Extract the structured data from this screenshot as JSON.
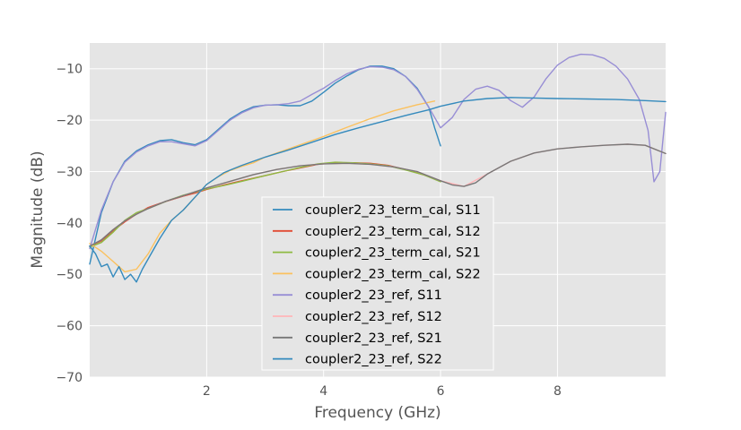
{
  "chart_data": {
    "type": "line",
    "title": "",
    "xlabel": "Frequency (GHz)",
    "ylabel": "Magnitude (dB)",
    "xlim": [
      0,
      9.85
    ],
    "ylim": [
      -70,
      -5
    ],
    "xticks": [
      2,
      4,
      6,
      8
    ],
    "yticks": [
      -70,
      -60,
      -50,
      -40,
      -30,
      -20,
      -10
    ],
    "tick_labels_x": [
      "2",
      "4",
      "6",
      "8"
    ],
    "tick_labels_y": [
      "−70",
      "−60",
      "−50",
      "−40",
      "−30",
      "−20",
      "−10"
    ],
    "grid": true,
    "legend_position": "lower-center",
    "background": "#e5e5e5",
    "series": [
      {
        "name": "coupler2_23_term_cal, S11",
        "color": "#348abd",
        "x": [
          0.0,
          0.2,
          0.4,
          0.6,
          0.8,
          1.0,
          1.2,
          1.4,
          1.6,
          1.8,
          2.0,
          2.2,
          2.4,
          2.6,
          2.8,
          3.0,
          3.2,
          3.4,
          3.6,
          3.8,
          4.0,
          4.2,
          4.4,
          4.6,
          4.8,
          5.0,
          5.2,
          5.4,
          5.6,
          5.8,
          5.9,
          6.0
        ],
        "y": [
          -48,
          -38,
          -32,
          -28,
          -26,
          -24.8,
          -24,
          -23.8,
          -24.4,
          -24.8,
          -23.8,
          -21.8,
          -19.8,
          -18.4,
          -17.4,
          -17.1,
          -17.0,
          -17.2,
          -17.2,
          -16.3,
          -14.6,
          -12.8,
          -11.4,
          -10.2,
          -9.5,
          -9.5,
          -10.0,
          -11.5,
          -13.8,
          -17.5,
          -21.5,
          -25.0
        ]
      },
      {
        "name": "coupler2_23_term_cal, S12",
        "color": "#e24a33",
        "x": [
          0.0,
          0.2,
          0.4,
          0.6,
          0.8,
          1.0,
          1.2,
          1.4,
          1.6,
          1.8,
          2.0,
          2.3,
          2.6,
          3.0,
          3.3,
          3.6,
          3.9,
          4.2,
          4.5,
          4.8,
          5.1,
          5.4,
          5.7,
          6.0
        ],
        "y": [
          -44.5,
          -43.5,
          -41.5,
          -39.8,
          -38.3,
          -37,
          -36.2,
          -35.5,
          -34.8,
          -34.2,
          -33.5,
          -32.6,
          -31.8,
          -30.8,
          -30.0,
          -29.3,
          -28.6,
          -28.3,
          -28.3,
          -28.4,
          -28.8,
          -29.6,
          -30.6,
          -31.8
        ]
      },
      {
        "name": "coupler2_23_term_cal, S21",
        "color": "#8eba42",
        "x": [
          0.0,
          0.2,
          0.4,
          0.6,
          0.8,
          1.0,
          1.2,
          1.4,
          1.6,
          1.8,
          2.0,
          2.3,
          2.6,
          3.0,
          3.3,
          3.6,
          3.9,
          4.2,
          4.5,
          4.8,
          5.1,
          5.4,
          5.7,
          6.0
        ],
        "y": [
          -44.7,
          -43.8,
          -41.8,
          -39.5,
          -38.0,
          -37.2,
          -36.3,
          -35.4,
          -34.6,
          -34.0,
          -33.4,
          -32.7,
          -31.9,
          -30.8,
          -30.0,
          -29.2,
          -28.5,
          -28.2,
          -28.3,
          -28.5,
          -28.9,
          -29.7,
          -30.6,
          -32.0
        ]
      },
      {
        "name": "coupler2_23_term_cal, S22",
        "color": "#fbc15e",
        "x": [
          0.0,
          0.2,
          0.4,
          0.6,
          0.8,
          1.0,
          1.2,
          1.4,
          1.6,
          1.8,
          2.0,
          2.2,
          2.4,
          2.6,
          2.8,
          3.0,
          3.3,
          3.6,
          4.0,
          4.4,
          4.8,
          5.2,
          5.6,
          5.9
        ],
        "y": [
          -44,
          -45.5,
          -47.5,
          -49.5,
          -49.0,
          -46,
          -42,
          -39.5,
          -37.5,
          -35,
          -32.5,
          -31,
          -29.8,
          -29,
          -28.3,
          -27.2,
          -26,
          -24.8,
          -23.2,
          -21.4,
          -19.7,
          -18.2,
          -17,
          -16.3
        ]
      },
      {
        "name": "coupler2_23_ref, S11",
        "color": "#988ed5",
        "x": [
          0.0,
          0.2,
          0.4,
          0.6,
          0.8,
          1.0,
          1.2,
          1.4,
          1.6,
          1.8,
          2.0,
          2.2,
          2.4,
          2.6,
          2.8,
          3.0,
          3.2,
          3.4,
          3.6,
          3.8,
          4.0,
          4.2,
          4.4,
          4.6,
          4.8,
          5.0,
          5.2,
          5.4,
          5.6,
          5.8,
          6.0,
          6.2,
          6.4,
          6.6,
          6.8,
          7.0,
          7.2,
          7.4,
          7.6,
          7.8,
          8.0,
          8.2,
          8.4,
          8.6,
          8.8,
          9.0,
          9.2,
          9.4,
          9.55,
          9.65,
          9.75,
          9.85
        ],
        "y": [
          -45,
          -37.5,
          -32,
          -28.2,
          -26.2,
          -25,
          -24.2,
          -24.2,
          -24.6,
          -25,
          -24,
          -22,
          -20,
          -18.6,
          -17.6,
          -17.1,
          -17.0,
          -16.8,
          -16.3,
          -15.0,
          -13.8,
          -12.3,
          -11.0,
          -10.1,
          -9.6,
          -9.7,
          -10.2,
          -11.5,
          -14.0,
          -17.5,
          -21.5,
          -19.5,
          -16.0,
          -14.0,
          -13.4,
          -14.2,
          -16.2,
          -17.5,
          -15.5,
          -12.0,
          -9.3,
          -7.8,
          -7.2,
          -7.3,
          -8.0,
          -9.5,
          -12.0,
          -16.0,
          -22.0,
          -32.0,
          -30.0,
          -18.5
        ]
      },
      {
        "name": "coupler2_23_ref, S12",
        "color": "#ffb5b8",
        "x": [
          0.0,
          0.2,
          0.4,
          0.6,
          0.8,
          1.0,
          1.3,
          1.6,
          2.0,
          2.4,
          2.8,
          3.2,
          3.6,
          4.0,
          4.4,
          4.8,
          5.2,
          5.6,
          6.0,
          6.4,
          6.8,
          7.2,
          7.6,
          8.0,
          8.4,
          8.8,
          9.2,
          9.5,
          9.85
        ],
        "y": [
          -44.5,
          -43.3,
          -41.3,
          -39.6,
          -38.3,
          -37.2,
          -35.8,
          -34.7,
          -33.2,
          -31.9,
          -30.6,
          -29.6,
          -28.9,
          -28.5,
          -28.4,
          -28.6,
          -29.1,
          -30.0,
          -31.8,
          -32.9,
          -30.5,
          -28.0,
          -26.4,
          -25.6,
          -25.2,
          -24.9,
          -24.7,
          -24.9,
          -26.5
        ]
      },
      {
        "name": "coupler2_23_ref, S21",
        "color": "#777777",
        "x": [
          0.0,
          0.2,
          0.4,
          0.6,
          0.8,
          1.0,
          1.3,
          1.6,
          2.0,
          2.4,
          2.8,
          3.2,
          3.6,
          4.0,
          4.4,
          4.8,
          5.2,
          5.6,
          6.0,
          6.2,
          6.4,
          6.6,
          6.8,
          7.2,
          7.6,
          8.0,
          8.4,
          8.8,
          9.2,
          9.5,
          9.85
        ],
        "y": [
          -44.5,
          -43.3,
          -41.3,
          -39.6,
          -38.3,
          -37.2,
          -35.8,
          -34.7,
          -33.2,
          -31.9,
          -30.6,
          -29.6,
          -28.9,
          -28.5,
          -28.4,
          -28.6,
          -29.1,
          -30.0,
          -31.8,
          -32.6,
          -32.9,
          -32.2,
          -30.5,
          -28.0,
          -26.4,
          -25.6,
          -25.2,
          -24.9,
          -24.7,
          -24.9,
          -26.5
        ]
      },
      {
        "name": "coupler2_23_ref, S22",
        "color": "#348abd",
        "x": [
          0.0,
          0.1,
          0.2,
          0.3,
          0.4,
          0.5,
          0.6,
          0.7,
          0.8,
          0.9,
          1.0,
          1.2,
          1.4,
          1.6,
          1.8,
          2.0,
          2.3,
          2.6,
          3.0,
          3.4,
          3.8,
          4.2,
          4.6,
          5.0,
          5.4,
          5.8,
          6.0,
          6.4,
          6.8,
          7.2,
          7.6,
          8.0,
          8.5,
          9.0,
          9.5,
          9.85
        ],
        "y": [
          -44.5,
          -46,
          -48.5,
          -48,
          -50.5,
          -48.5,
          -51,
          -50,
          -51.5,
          -49,
          -47,
          -43,
          -39.5,
          -37.5,
          -35,
          -32.5,
          -30.2,
          -28.8,
          -27.2,
          -25.8,
          -24.3,
          -22.8,
          -21.5,
          -20.3,
          -19.1,
          -18.0,
          -17.3,
          -16.3,
          -15.8,
          -15.6,
          -15.7,
          -15.8,
          -15.9,
          -16.0,
          -16.2,
          -16.4
        ]
      }
    ]
  }
}
